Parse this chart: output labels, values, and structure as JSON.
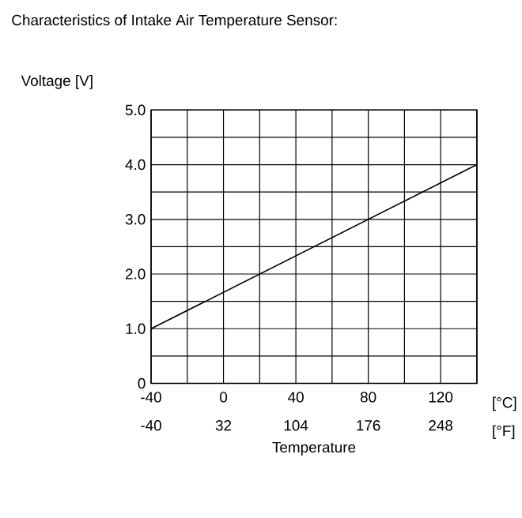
{
  "chart_data": {
    "type": "line",
    "title": "Characteristics of Intake Air Temperature Sensor:",
    "ylabel": "Voltage  [V]",
    "xlabel": "Temperature",
    "x2label": "[°F]",
    "annotations": [
      "[°C]"
    ],
    "x": [
      -40,
      140
    ],
    "series": [
      {
        "color": "#000000",
        "values": [
          1.0,
          4.0
        ]
      }
    ],
    "xlim": [
      -40,
      140
    ],
    "xticks": [
      -40,
      {
        "value": -20,
        "label": null
      },
      0,
      {
        "value": 20,
        "label": null
      },
      40,
      {
        "value": 60,
        "label": null
      },
      80,
      {
        "value": 100,
        "label": null
      },
      120,
      {
        "value": 140,
        "label": null
      }
    ],
    "x2lim": [
      -40,
      284
    ],
    "x2ticks": [
      -40,
      32,
      104,
      176,
      248
    ],
    "ylim": [
      0,
      5
    ],
    "yticks": [
      0,
      {
        "value": 0.5,
        "label": null
      },
      {
        "value": 1,
        "label": "1.0"
      },
      {
        "value": 1.5,
        "label": null
      },
      {
        "value": 2,
        "label": "2.0"
      },
      {
        "value": 2.5,
        "label": null
      },
      {
        "value": 3,
        "label": "3.0"
      },
      {
        "value": 3.5,
        "label": null
      },
      {
        "value": 4,
        "label": "4.0"
      },
      {
        "value": 4.5,
        "label": null
      },
      {
        "value": 5,
        "label": "5.0"
      }
    ],
    "grid": true,
    "marker": "none",
    "line_style": "solid"
  }
}
